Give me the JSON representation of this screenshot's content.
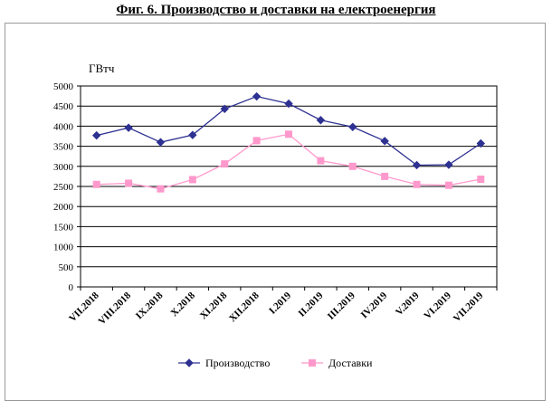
{
  "title": "Фиг. 6. Производство и доставки на електроенергия",
  "chart_data": {
    "type": "line",
    "title": "Фиг. 6. Производство и доставки на електроенергия",
    "ylabel": "ГВтч",
    "xlabel": "",
    "ylim": [
      0,
      5000
    ],
    "yticks": [
      0,
      500,
      1000,
      1500,
      2000,
      2500,
      3000,
      3500,
      4000,
      4500,
      5000
    ],
    "grid": true,
    "legend_position": "bottom",
    "categories": [
      "VII.2018",
      "VIII.2018",
      "IX.2018",
      "X.2018",
      "XI.2018",
      "XII.2018",
      "I.2019",
      "II.2019",
      "III.2019",
      "IV.2019",
      "V.2019",
      "VI.2019",
      "VII.2019"
    ],
    "series": [
      {
        "name": "Производство",
        "color": "#2e3192",
        "marker": "diamond",
        "values": [
          3770,
          3960,
          3600,
          3780,
          4430,
          4740,
          4560,
          4150,
          3980,
          3630,
          3030,
          3040,
          3570
        ]
      },
      {
        "name": "Доставки",
        "color": "#ff99cc",
        "marker": "square",
        "values": [
          2550,
          2580,
          2440,
          2670,
          3060,
          3640,
          3800,
          3140,
          3000,
          2750,
          2550,
          2530,
          2680
        ]
      }
    ]
  }
}
